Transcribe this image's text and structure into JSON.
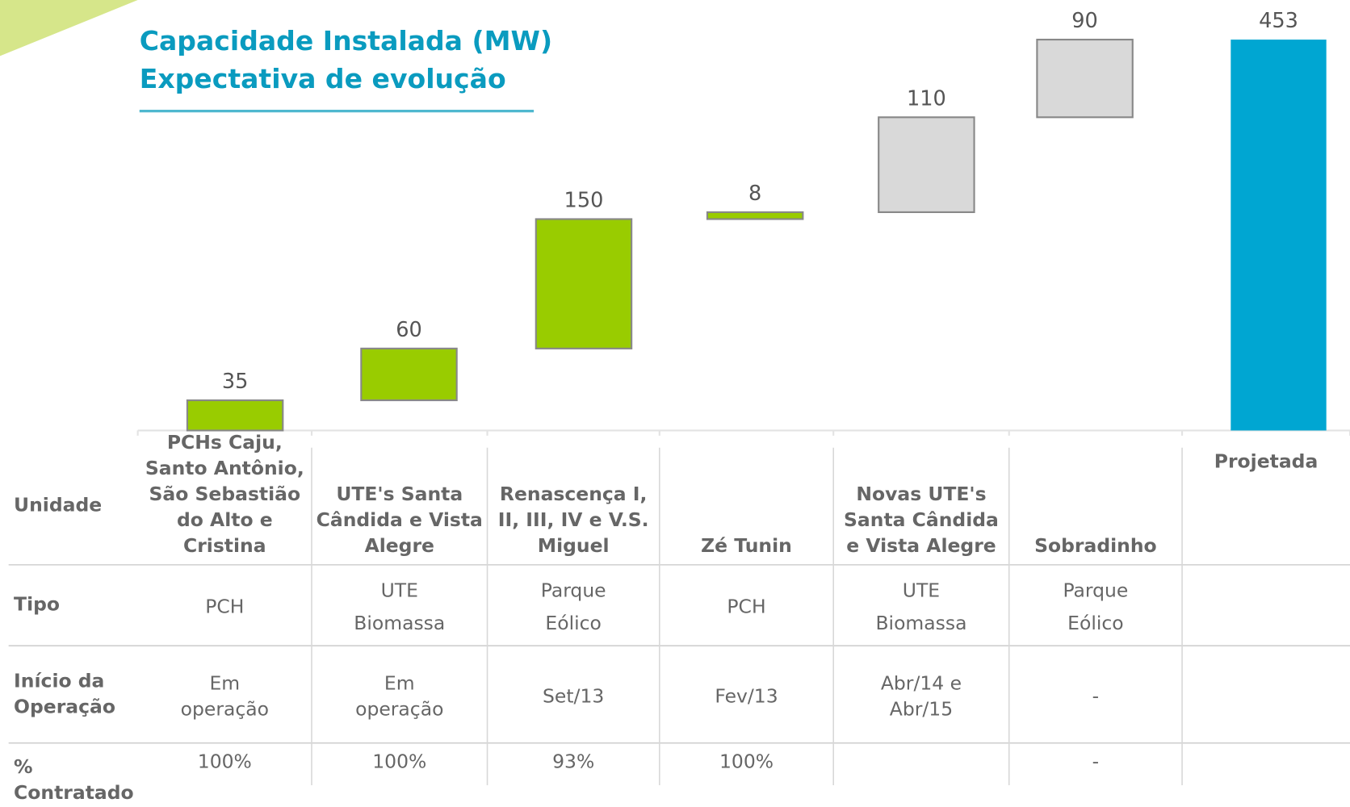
{
  "chart_data": {
    "type": "waterfall",
    "title": "Capacidade Instalada (MW)",
    "subtitle": "Expectativa de evolução",
    "categories": [
      "PCHs Caju, Santo Antônio, São Sebastião do Alto e Cristina",
      "UTE's Santa Cândida e Vista Alegre",
      "Renascença I, II, III, IV e V.S. Miguel",
      "Zé Tunin",
      "Novas UTE's Santa Cândida e Vista Alegre",
      "Sobradinho",
      "Projetada"
    ],
    "values": [
      35,
      60,
      150,
      8,
      110,
      90,
      453
    ],
    "is_total": [
      false,
      false,
      false,
      false,
      false,
      false,
      true
    ],
    "colors": [
      "#99cc00",
      "#99cc00",
      "#99cc00",
      "#99cc00",
      "#d9d9d9",
      "#d9d9d9",
      "#00a6d2"
    ]
  },
  "table": {
    "row_headers": [
      "Unidade",
      "Tipo",
      "Início da Operação",
      "% Contratado"
    ],
    "rows": [
      [
        "PCH",
        "UTE Biomassa",
        "Parque Eólico",
        "PCH",
        "UTE Biomassa",
        "Parque Eólico",
        null
      ],
      [
        "Em operação",
        "Em operação",
        "Set/13",
        "Fev/13",
        "Abr/14 e Abr/15",
        "-",
        null
      ],
      [
        "100%",
        "100%",
        "93%",
        "100%",
        null,
        "-",
        null
      ]
    ]
  }
}
